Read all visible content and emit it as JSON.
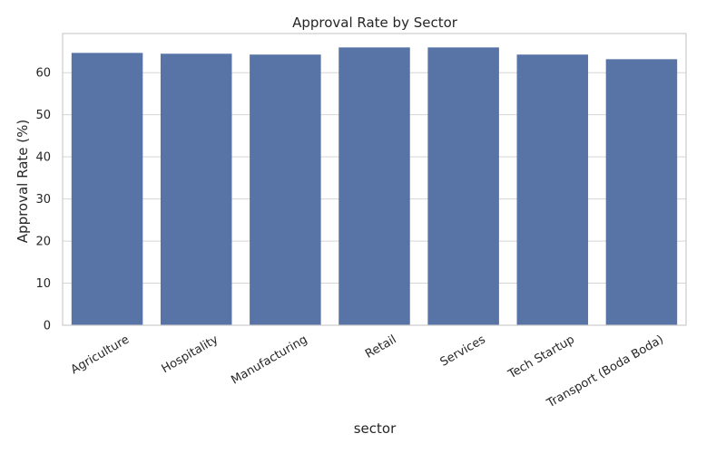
{
  "chart_data": {
    "type": "bar",
    "title": "Approval Rate by Sector",
    "xlabel": "sector",
    "ylabel": "Approval Rate (%)",
    "categories": [
      "Agriculture",
      "Hospitality",
      "Manufacturing",
      "Retail",
      "Services",
      "Tech Startup",
      "Transport (Boda Boda)"
    ],
    "values": [
      64.7,
      64.5,
      64.3,
      66.0,
      66.0,
      64.3,
      63.2
    ],
    "ylim": [
      0,
      69.3
    ],
    "yticks": [
      0,
      10,
      20,
      30,
      40,
      50,
      60
    ],
    "grid": "y",
    "legend": "none",
    "bar_color": "#5874a6",
    "grid_color": "#d5d5d5",
    "frame_color": "#cccccc"
  }
}
